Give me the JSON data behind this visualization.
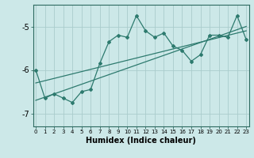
{
  "xlabel": "Humidex (Indice chaleur)",
  "bg_color": "#cce8e8",
  "line_color": "#2d7a6e",
  "grid_color": "#aacccc",
  "x_data": [
    0,
    1,
    2,
    3,
    4,
    5,
    6,
    7,
    8,
    9,
    10,
    11,
    12,
    13,
    14,
    15,
    16,
    17,
    18,
    19,
    20,
    21,
    22,
    23
  ],
  "y_main": [
    -6.0,
    -6.65,
    -6.55,
    -6.65,
    -6.75,
    -6.5,
    -6.45,
    -5.85,
    -5.35,
    -5.2,
    -5.25,
    -4.75,
    -5.1,
    -5.25,
    -5.15,
    -5.45,
    -5.55,
    -5.8,
    -5.65,
    -5.2,
    -5.2,
    -5.25,
    -4.75,
    -5.3
  ],
  "line1_y": [
    -6.3,
    -5.1
  ],
  "line2_y": [
    -6.7,
    -5.0
  ],
  "ylim": [
    -7.3,
    -4.5
  ],
  "yticks": [
    -7,
    -6,
    -5
  ],
  "xlim": [
    -0.3,
    23.3
  ]
}
